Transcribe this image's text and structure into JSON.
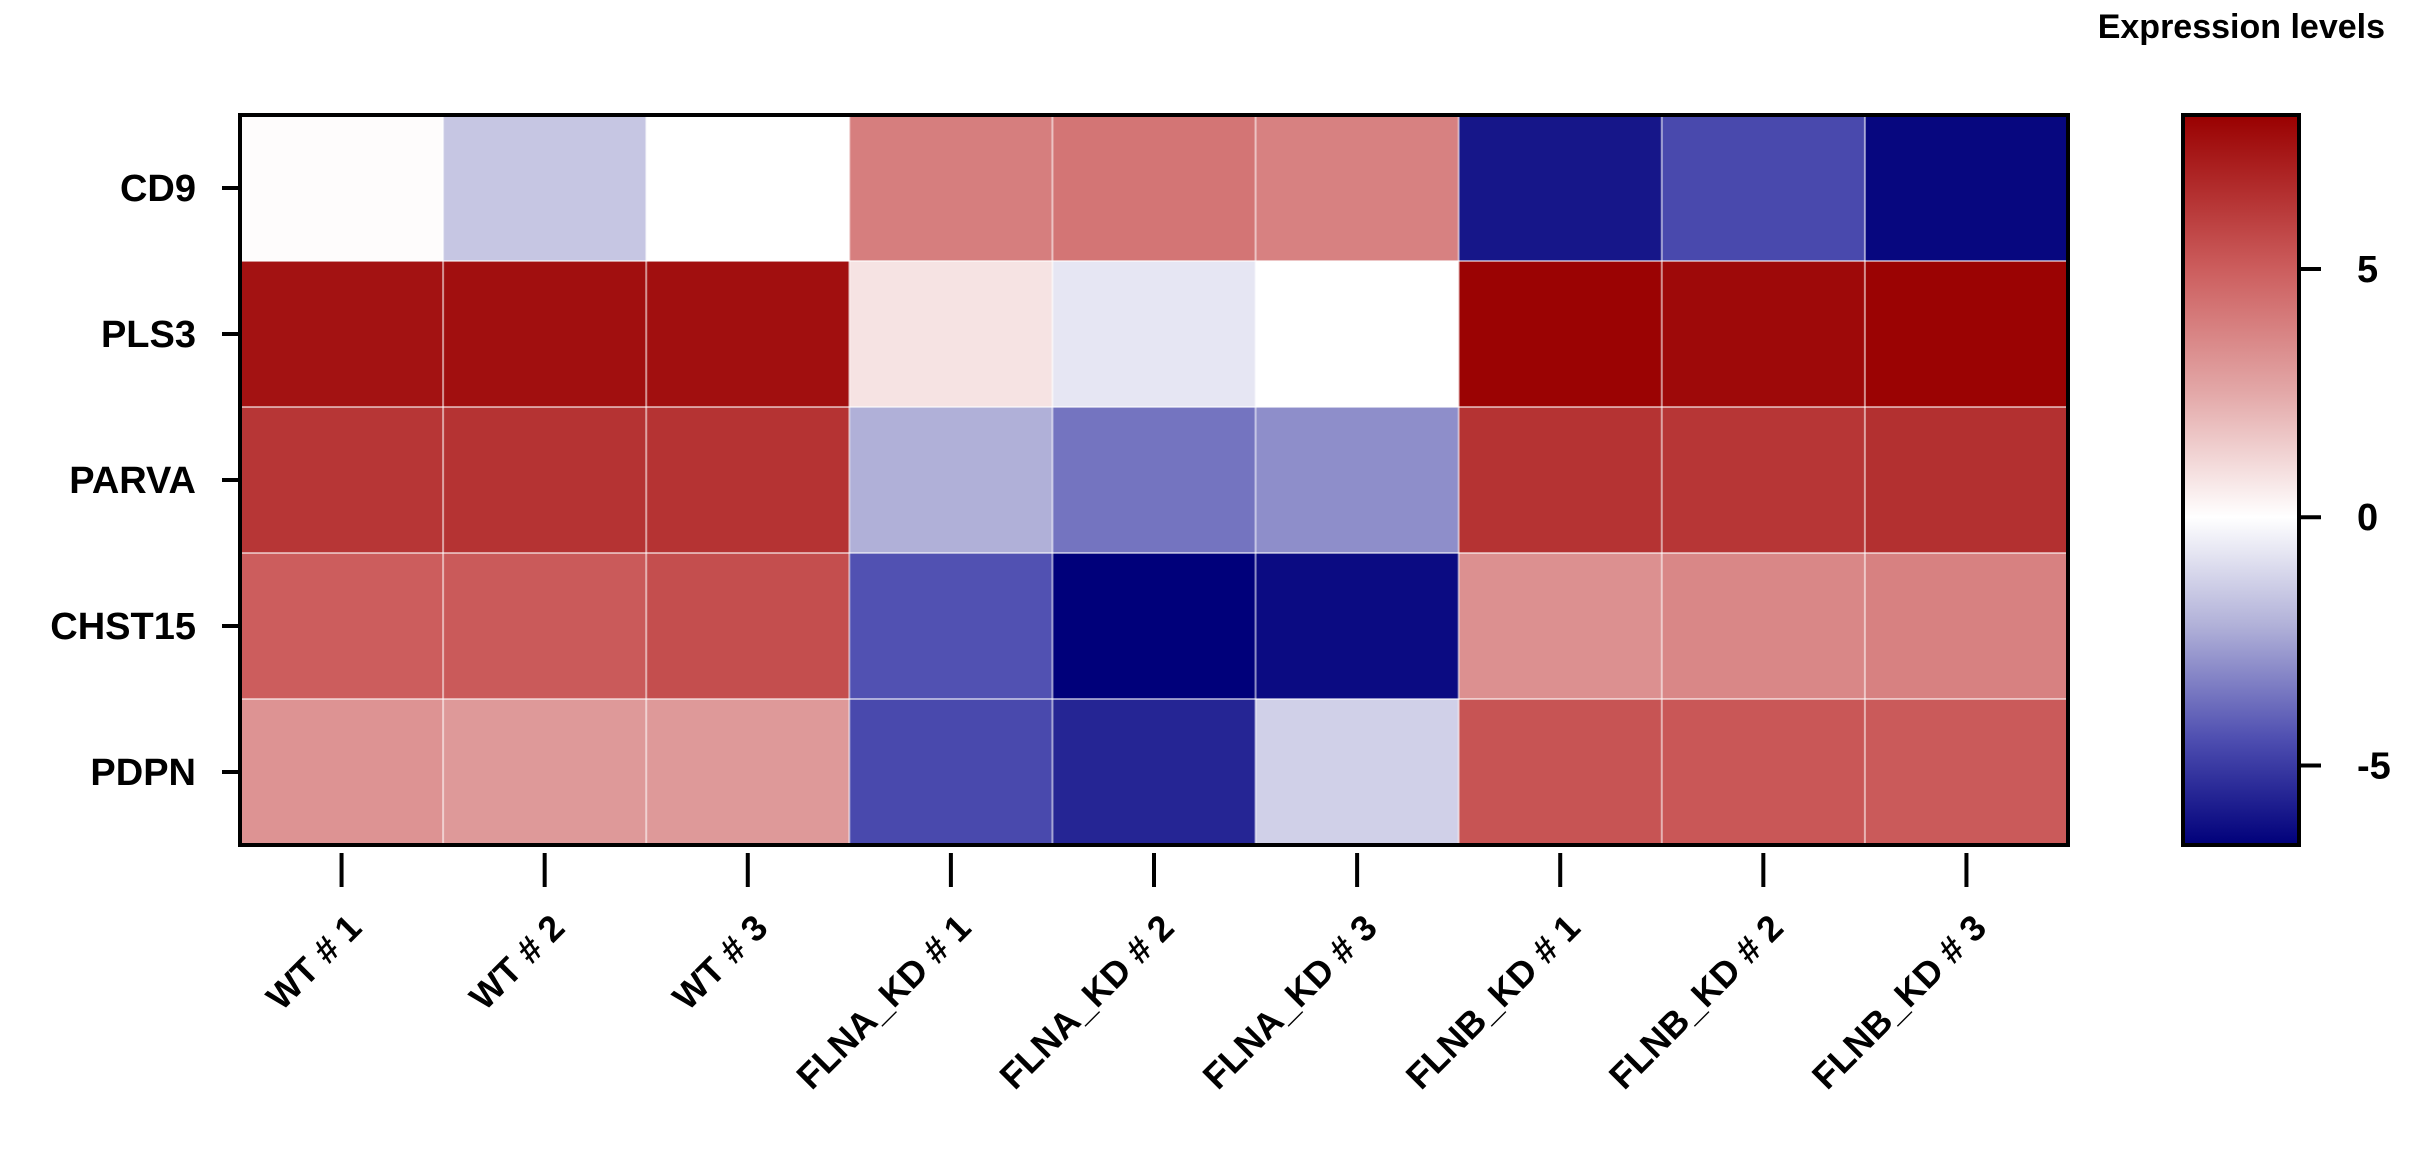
{
  "chart_data": {
    "type": "heatmap",
    "title": "",
    "xlabel": "",
    "ylabel": "",
    "rows": [
      "CD9",
      "PLS3",
      "PARVA",
      "CHST15",
      "PDPN"
    ],
    "columns": [
      "WT # 1",
      "WT # 2",
      "WT # 3",
      "FLNA_KD # 1",
      "FLNA_KD # 2",
      "FLNA_KD # 3",
      "FLNB_KD # 1",
      "FLNB_KD # 2",
      "FLNB_KD # 3"
    ],
    "values": [
      [
        0.1,
        -1.6,
        0.0,
        3.9,
        4.2,
        3.8,
        -6.0,
        -4.6,
        -6.4
      ],
      [
        7.5,
        7.6,
        7.6,
        0.8,
        -0.7,
        0.0,
        8.0,
        7.8,
        8.0
      ],
      [
        6.3,
        6.4,
        6.4,
        -2.2,
        -3.6,
        -3.0,
        6.4,
        6.3,
        6.5
      ],
      [
        5.0,
        5.1,
        5.5,
        -4.4,
        -6.6,
        -6.3,
        3.3,
        3.6,
        3.8
      ],
      [
        3.2,
        3.0,
        3.0,
        -4.6,
        -5.6,
        -1.3,
        5.3,
        5.2,
        5.1
      ]
    ],
    "colorbar": {
      "title": "Expression levels",
      "min": -6.6,
      "max": 8.1,
      "ticks": [
        5,
        0,
        -5
      ],
      "tick_labels": [
        "5",
        "0",
        "-5"
      ],
      "low_color": "#00007a",
      "mid_color": "#ffffff",
      "high_color": "#990000",
      "stops": [
        {
          "v": -6.6,
          "c": "#00007a"
        },
        {
          "v": -4.5,
          "c": "#4d4db0"
        },
        {
          "v": -2.2,
          "c": "#b0b0d8"
        },
        {
          "v": 0,
          "c": "#ffffff"
        },
        {
          "v": 2.5,
          "c": "#e3a8a8"
        },
        {
          "v": 5,
          "c": "#cc5d5d"
        },
        {
          "v": 8.1,
          "c": "#990000"
        }
      ]
    },
    "grid": true,
    "legend": "right"
  }
}
